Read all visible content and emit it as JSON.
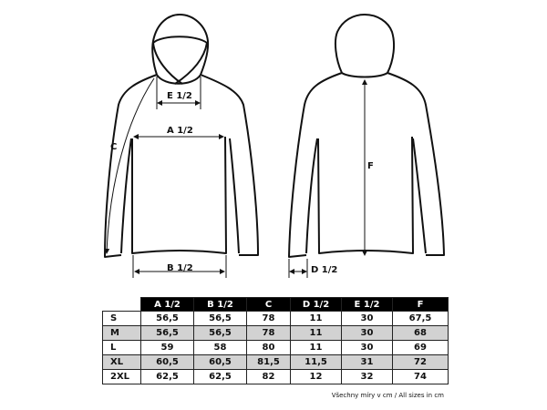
{
  "diagram": {
    "labels": {
      "a": "A 1/2",
      "b": "B 1/2",
      "c": "C",
      "d": "D 1/2",
      "e": "E 1/2",
      "f": "F"
    }
  },
  "table": {
    "columns": [
      "A 1/2",
      "B 1/2",
      "C",
      "D 1/2",
      "E 1/2",
      "F"
    ],
    "rows": [
      {
        "size": "S",
        "values": [
          "56,5",
          "56,5",
          "78",
          "11",
          "30",
          "67,5"
        ]
      },
      {
        "size": "M",
        "values": [
          "56,5",
          "56,5",
          "78",
          "11",
          "30",
          "68"
        ]
      },
      {
        "size": "L",
        "values": [
          "59",
          "58",
          "80",
          "11",
          "30",
          "69"
        ]
      },
      {
        "size": "XL",
        "values": [
          "60,5",
          "60,5",
          "81,5",
          "11,5",
          "31",
          "72"
        ]
      },
      {
        "size": "2XL",
        "values": [
          "62,5",
          "62,5",
          "82",
          "12",
          "32",
          "74"
        ]
      }
    ],
    "alt_row_color": "#d2d2d2",
    "header_color": "#000000"
  },
  "note": "Všechny míry v cm / All sizes in cm"
}
